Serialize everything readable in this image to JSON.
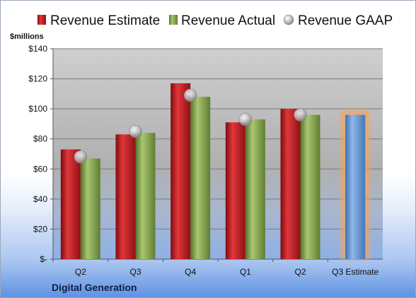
{
  "chart_data": {
    "type": "bar",
    "title": "",
    "footer": "Digital Generation",
    "units": "$millions",
    "xlabel": "",
    "ylabel": "",
    "categories": [
      "Q2",
      "Q3",
      "Q4",
      "Q1",
      "Q2",
      "Q3 Estimate"
    ],
    "series": [
      {
        "name": "Revenue Estimate",
        "kind": "bar",
        "color": "#c0161a",
        "values": [
          73,
          83,
          117,
          91,
          100,
          null
        ]
      },
      {
        "name": "Revenue Actual",
        "kind": "bar",
        "color": "#82a34a",
        "values": [
          67,
          84,
          108,
          93,
          96,
          null
        ]
      },
      {
        "name": "Revenue GAAP",
        "kind": "marker",
        "color": "#b5b5b8",
        "values": [
          68,
          85,
          109,
          93,
          96,
          null
        ]
      },
      {
        "name": "",
        "kind": "bar",
        "color": "#5b8fd0",
        "highlight": "#f2a45b",
        "values": [
          null,
          null,
          null,
          null,
          null,
          96
        ]
      }
    ],
    "ylim": [
      0,
      140
    ],
    "yticks": [
      0,
      20,
      40,
      60,
      80,
      100,
      120,
      140
    ],
    "ytick_labels": [
      "$-",
      "$20",
      "$40",
      "$60",
      "$80",
      "$100",
      "$120",
      "$140"
    ],
    "grid": true,
    "legend_position": "top"
  }
}
